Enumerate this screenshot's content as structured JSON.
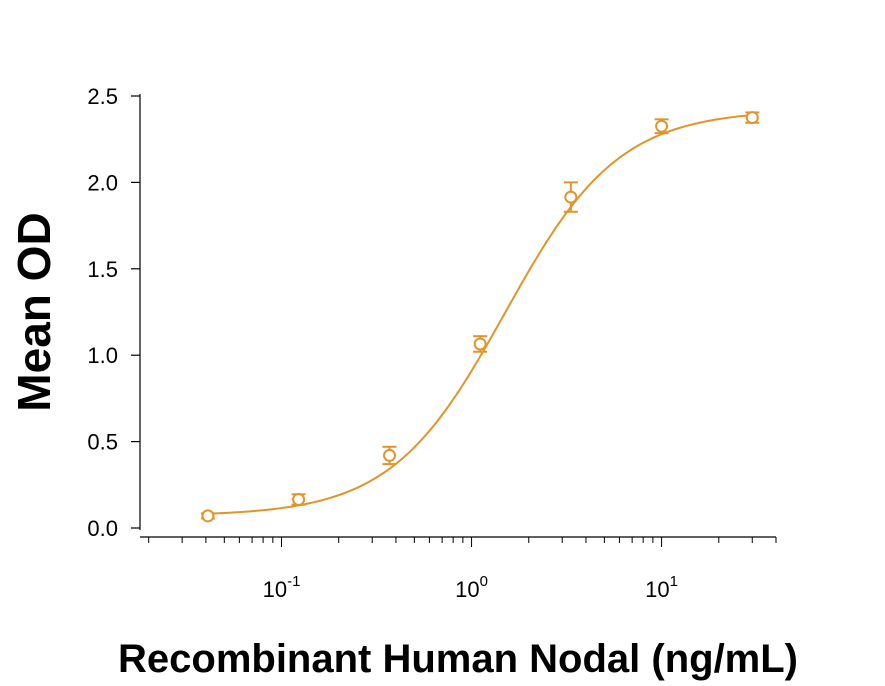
{
  "chart_data": {
    "type": "scatter",
    "title": "",
    "xlabel": "Recombinant Human Nodal (ng/mL)",
    "ylabel": "Mean OD",
    "x_scale": "log",
    "xlim": [
      0.018,
      40
    ],
    "ylim": [
      0,
      2.5
    ],
    "x_ticks": [
      {
        "value": 0.1,
        "base": "10",
        "exp": "-1"
      },
      {
        "value": 1,
        "base": "10",
        "exp": "0"
      },
      {
        "value": 10,
        "base": "10",
        "exp": "1"
      }
    ],
    "y_ticks": [
      {
        "value": 0,
        "label": "0.0"
      },
      {
        "value": 0.5,
        "label": "0.5"
      },
      {
        "value": 1.0,
        "label": "1.0"
      },
      {
        "value": 1.5,
        "label": "1.5"
      },
      {
        "value": 2.0,
        "label": "2.0"
      },
      {
        "value": 2.5,
        "label": "2.5"
      }
    ],
    "grid": false,
    "color": "#E0952A",
    "points": [
      {
        "x": 0.041,
        "y": 0.07,
        "err": 0.015
      },
      {
        "x": 0.123,
        "y": 0.165,
        "err": 0.03
      },
      {
        "x": 0.37,
        "y": 0.42,
        "err": 0.05
      },
      {
        "x": 1.11,
        "y": 1.065,
        "err": 0.045
      },
      {
        "x": 3.33,
        "y": 1.915,
        "err": 0.085
      },
      {
        "x": 10,
        "y": 2.325,
        "err": 0.04
      },
      {
        "x": 30,
        "y": 2.375,
        "err": 0.03
      }
    ],
    "fit_curve": {
      "bottom": 0.07,
      "top": 2.42,
      "ec50": 1.5,
      "hill": 1.45
    }
  }
}
